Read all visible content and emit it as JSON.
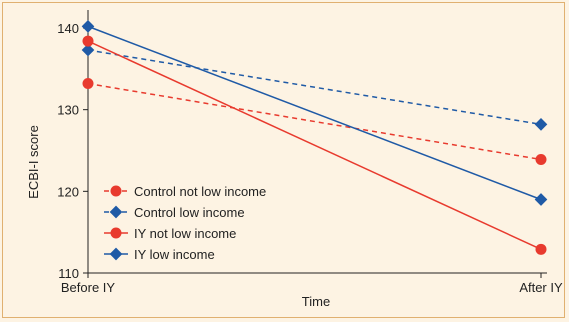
{
  "chart_data": {
    "type": "line",
    "xlabel": "Time",
    "ylabel": "ECBI-I score",
    "x": [
      "Before IY",
      "After IY"
    ],
    "ylim": [
      110,
      140
    ],
    "yticks": [
      110,
      120,
      130,
      140
    ],
    "grid": false,
    "legend_position": "bottom-left",
    "series": [
      {
        "name": "Control not low income",
        "values": [
          133.2,
          123.9
        ],
        "color": "#e83a2e",
        "marker": "circle",
        "dash": true
      },
      {
        "name": "Control low income",
        "values": [
          137.3,
          128.2
        ],
        "color": "#1f5aa6",
        "marker": "diamond",
        "dash": true
      },
      {
        "name": "IY not low income",
        "values": [
          138.4,
          112.9
        ],
        "color": "#e83a2e",
        "marker": "circle",
        "dash": false
      },
      {
        "name": "IY low income",
        "values": [
          140.2,
          119.0
        ],
        "color": "#1f5aa6",
        "marker": "diamond",
        "dash": false
      }
    ]
  }
}
